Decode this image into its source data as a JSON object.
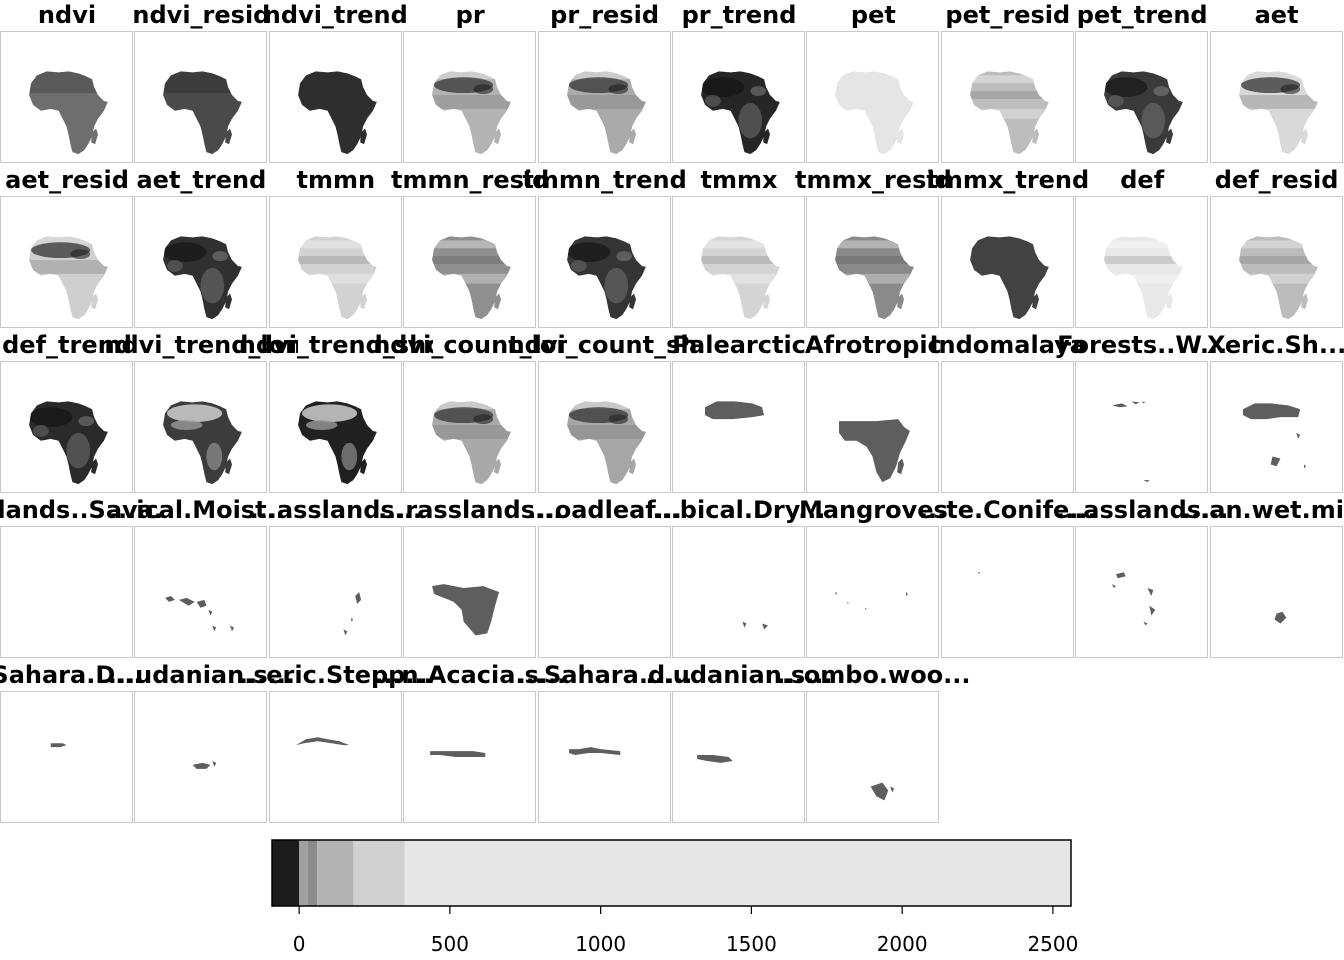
{
  "panels": [
    {
      "title": "ndvi",
      "kind": "africa",
      "shade": "#6e6e6e",
      "pattern": "north"
    },
    {
      "title": "ndvi_resid",
      "kind": "africa",
      "shade": "#4a4a4a",
      "pattern": "north"
    },
    {
      "title": "ndvi_trend",
      "kind": "africa",
      "shade": "#2e2e2e",
      "pattern": "flat"
    },
    {
      "title": "pr",
      "kind": "africa",
      "shade": "#b3b3b3",
      "pattern": "sahara-dark"
    },
    {
      "title": "pr_resid",
      "kind": "africa",
      "shade": "#aaaaaa",
      "pattern": "sahara-dark"
    },
    {
      "title": "pr_trend",
      "kind": "africa",
      "shade": "#262626",
      "pattern": "mottled"
    },
    {
      "title": "pet",
      "kind": "africa",
      "shade": "#e5e5e5",
      "pattern": "flat"
    },
    {
      "title": "pet_resid",
      "kind": "africa",
      "shade": "#bdbdbd",
      "pattern": "bands-light"
    },
    {
      "title": "pet_trend",
      "kind": "africa",
      "shade": "#3a3a3a",
      "pattern": "mottled"
    },
    {
      "title": "aet",
      "kind": "africa",
      "shade": "#d9d9d9",
      "pattern": "sahara-dark"
    },
    {
      "title": "aet_resid",
      "kind": "africa",
      "shade": "#cfcfcf",
      "pattern": "sahara-dark"
    },
    {
      "title": "aet_trend",
      "kind": "africa",
      "shade": "#303030",
      "pattern": "mottled"
    },
    {
      "title": "tmmn",
      "kind": "africa",
      "shade": "#d2d2d2",
      "pattern": "bands-light"
    },
    {
      "title": "tmmn_resid",
      "kind": "africa",
      "shade": "#8f8f8f",
      "pattern": "bands-light"
    },
    {
      "title": "tmmn_trend",
      "kind": "africa",
      "shade": "#353535",
      "pattern": "mottled"
    },
    {
      "title": "tmmx",
      "kind": "africa",
      "shade": "#d4d4d4",
      "pattern": "bands-light"
    },
    {
      "title": "tmmx_resid",
      "kind": "africa",
      "shade": "#8a8a8a",
      "pattern": "bands-light"
    },
    {
      "title": "tmmx_trend",
      "kind": "africa",
      "shade": "#424242",
      "pattern": "flat"
    },
    {
      "title": "def",
      "kind": "africa",
      "shade": "#e8e8e8",
      "pattern": "bands-light"
    },
    {
      "title": "def_resid",
      "kind": "africa",
      "shade": "#bcbcbc",
      "pattern": "bands-light"
    },
    {
      "title": "def_trend",
      "kind": "africa",
      "shade": "#2a2a2a",
      "pattern": "mottled"
    },
    {
      "title": "ndvi_trend_long",
      "kind": "africa",
      "shade": "#3c3c3c",
      "pattern": "light-mix"
    },
    {
      "title": "ndvi_trend_short",
      "kind": "africa",
      "shade": "#202020",
      "pattern": "light-mix"
    },
    {
      "title": "ndvi_count_long",
      "kind": "africa",
      "shade": "#a9a9a9",
      "pattern": "sahara-dark"
    },
    {
      "title": "ndvi_count_short",
      "kind": "africa",
      "shade": "#a6a6a6",
      "pattern": "sahara-dark"
    },
    {
      "title": "Palearctic",
      "kind": "region",
      "region": "north-band"
    },
    {
      "title": "Afrotropic",
      "kind": "region",
      "region": "subsaharan"
    },
    {
      "title": "Indomalaya",
      "kind": "empty"
    },
    {
      "title": "Forests..W...",
      "kind": "region",
      "region": "med-scatter"
    },
    {
      "title": "Xeric.Sh...",
      "kind": "region",
      "region": "xeric"
    },
    {
      "title": "...lands..Sava...",
      "kind": "empty"
    },
    {
      "title": "...ical.Moist...",
      "kind": "region",
      "region": "moist"
    },
    {
      "title": "...asslands...",
      "kind": "region",
      "region": "grass-east"
    },
    {
      "title": "...rasslands...",
      "kind": "region",
      "region": "savanna"
    },
    {
      "title": "...oadleaf...",
      "kind": "empty"
    },
    {
      "title": "...bical.Dry...",
      "kind": "region",
      "region": "dry-spots"
    },
    {
      "title": "Mangroves",
      "kind": "region",
      "region": "mangroves"
    },
    {
      "title": "...te.Conife...",
      "kind": "region",
      "region": "conifer"
    },
    {
      "title": "...asslands...",
      "kind": "region",
      "region": "montane"
    },
    {
      "title": "...an.wet.mi...",
      "kind": "region",
      "region": "madagascar"
    },
    {
      "title": "Sahara.D...",
      "kind": "region",
      "region": "sahara-d"
    },
    {
      "title": "...udanian.s...",
      "kind": "region",
      "region": "sudan-small"
    },
    {
      "title": "...eric.Stepp...",
      "kind": "region",
      "region": "steppe"
    },
    {
      "title": "...n.Acacia.s...",
      "kind": "region",
      "region": "acacia"
    },
    {
      "title": "...Sahara.d...",
      "kind": "region",
      "region": "sahel"
    },
    {
      "title": "...udanian.s...",
      "kind": "region",
      "region": "sudanian"
    },
    {
      "title": "...ombo.woo...",
      "kind": "region",
      "region": "miombo"
    }
  ],
  "colors": {
    "panel_border": "#c8c8c8",
    "region_fill": "#5e5e5e"
  },
  "legend": {
    "type": "colorbar",
    "breaks": [
      -90,
      0,
      60,
      180,
      350,
      2560
    ],
    "colors": [
      "#1c1c1c",
      "#8a8a8a",
      "#b3b3b3",
      "#d0d0d0",
      "#e6e6e6"
    ],
    "range": [
      -90,
      2560
    ],
    "ticks": [
      0,
      500,
      1000,
      1500,
      2000,
      2500
    ],
    "tick_labels": [
      "0",
      "500",
      "1000",
      "1500",
      "2000",
      "2500"
    ]
  }
}
